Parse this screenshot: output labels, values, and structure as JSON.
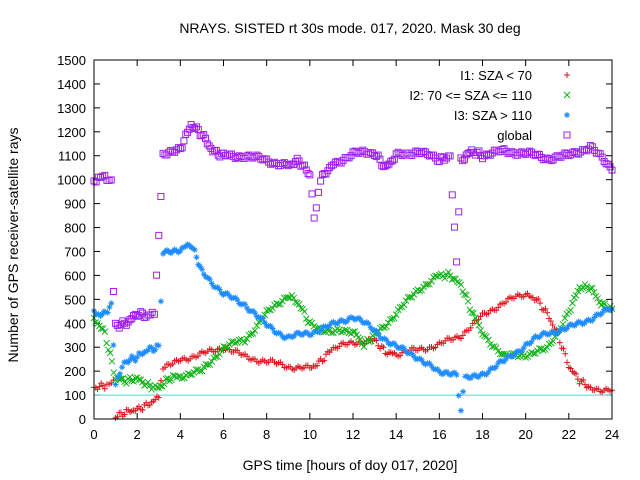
{
  "chart_data": {
    "type": "scatter",
    "title": "NRAYS. SISTED rt 30s mode. 017, 2020. Mask 30 deg",
    "xlabel": "GPS time [hours of doy 017, 2020]",
    "ylabel": "Number of GPS receiver-satellite rays",
    "xlim": [
      0,
      24
    ],
    "ylim": [
      0,
      1500
    ],
    "xticks": [
      "0",
      "2",
      "4",
      "6",
      "8",
      "10",
      "12",
      "14",
      "16",
      "18",
      "20",
      "22",
      "24"
    ],
    "yticks": [
      "0",
      "100",
      "200",
      "300",
      "400",
      "500",
      "600",
      "700",
      "800",
      "900",
      "1000",
      "1100",
      "1200",
      "1300",
      "1400",
      "1500"
    ],
    "legend_position": "top-right",
    "reference_line": {
      "y": 100,
      "color": "#40e0d0"
    },
    "series": [
      {
        "name": "I1: SZA < 70",
        "marker": "+",
        "color": "#e0141c",
        "points": [
          [
            0,
            130
          ],
          [
            0.5,
            140
          ],
          [
            0.9,
            150
          ],
          [
            1.0,
            10
          ],
          [
            1.5,
            30
          ],
          [
            2,
            40
          ],
          [
            2.5,
            60
          ],
          [
            3,
            90
          ],
          [
            3.2,
            220
          ],
          [
            4,
            250
          ],
          [
            5,
            270
          ],
          [
            6,
            300
          ],
          [
            7,
            260
          ],
          [
            8,
            240
          ],
          [
            9,
            220
          ],
          [
            10,
            210
          ],
          [
            10.5,
            240
          ],
          [
            11,
            290
          ],
          [
            12,
            320
          ],
          [
            13,
            330
          ],
          [
            13.5,
            280
          ],
          [
            14,
            270
          ],
          [
            15,
            290
          ],
          [
            16,
            310
          ],
          [
            17,
            350
          ],
          [
            18,
            430
          ],
          [
            19,
            490
          ],
          [
            20,
            520
          ],
          [
            20.5,
            500
          ],
          [
            21,
            440
          ],
          [
            21.5,
            350
          ],
          [
            22,
            220
          ],
          [
            22.5,
            160
          ],
          [
            23,
            130
          ],
          [
            24,
            120
          ]
        ]
      },
      {
        "name": "I2: 70 <= SZA <= 110",
        "marker": "x",
        "color": "#10b418",
        "points": [
          [
            0,
            420
          ],
          [
            0.5,
            360
          ],
          [
            1,
            170
          ],
          [
            1.5,
            160
          ],
          [
            2,
            170
          ],
          [
            2.5,
            140
          ],
          [
            3,
            130
          ],
          [
            3.5,
            170
          ],
          [
            4,
            180
          ],
          [
            5,
            200
          ],
          [
            6,
            300
          ],
          [
            7,
            330
          ],
          [
            8,
            440
          ],
          [
            9,
            520
          ],
          [
            9.5,
            480
          ],
          [
            10,
            400
          ],
          [
            11,
            360
          ],
          [
            12,
            370
          ],
          [
            12.5,
            310
          ],
          [
            13,
            350
          ],
          [
            14,
            440
          ],
          [
            15,
            540
          ],
          [
            16,
            600
          ],
          [
            16.5,
            600
          ],
          [
            17,
            560
          ],
          [
            17.5,
            450
          ],
          [
            18,
            360
          ],
          [
            19,
            260
          ],
          [
            20,
            270
          ],
          [
            21,
            290
          ],
          [
            22,
            450
          ],
          [
            22.5,
            550
          ],
          [
            23,
            550
          ],
          [
            23.5,
            480
          ],
          [
            24,
            460
          ]
        ]
      },
      {
        "name": "I3: SZA > 110",
        "marker": "*",
        "color": "#1e8cff",
        "points": [
          [
            0,
            440
          ],
          [
            0.3,
            430
          ],
          [
            0.8,
            470
          ],
          [
            1,
            150
          ],
          [
            1.2,
            200
          ],
          [
            1.5,
            240
          ],
          [
            2,
            260
          ],
          [
            2.5,
            290
          ],
          [
            3,
            300
          ],
          [
            3.2,
            700
          ],
          [
            4,
            710
          ],
          [
            4.5,
            730
          ],
          [
            5,
            620
          ],
          [
            6,
            520
          ],
          [
            7,
            480
          ],
          [
            8,
            390
          ],
          [
            9,
            340
          ],
          [
            10,
            360
          ],
          [
            11,
            390
          ],
          [
            12,
            430
          ],
          [
            13,
            370
          ],
          [
            14,
            300
          ],
          [
            15,
            260
          ],
          [
            16,
            190
          ],
          [
            16.8,
            180
          ],
          [
            17,
            40
          ],
          [
            17.2,
            180
          ],
          [
            18,
            190
          ],
          [
            19,
            240
          ],
          [
            20,
            310
          ],
          [
            21,
            360
          ],
          [
            22,
            380
          ],
          [
            23,
            420
          ],
          [
            24,
            460
          ]
        ]
      },
      {
        "name": "global",
        "marker": "square",
        "color": "#a020f0",
        "points": [
          [
            0,
            1000
          ],
          [
            0.4,
            1010
          ],
          [
            0.8,
            1000
          ],
          [
            0.9,
            540
          ],
          [
            1.0,
            390
          ],
          [
            1.5,
            400
          ],
          [
            2,
            440
          ],
          [
            2.5,
            430
          ],
          [
            2.8,
            450
          ],
          [
            3.0,
            760
          ],
          [
            3.2,
            1100
          ],
          [
            4,
            1130
          ],
          [
            4.5,
            1230
          ],
          [
            5,
            1190
          ],
          [
            5.5,
            1120
          ],
          [
            6,
            1100
          ],
          [
            7,
            1100
          ],
          [
            8,
            1080
          ],
          [
            9,
            1060
          ],
          [
            9.5,
            1080
          ],
          [
            10,
            1020
          ],
          [
            10.2,
            840
          ],
          [
            10.5,
            1000
          ],
          [
            11,
            1060
          ],
          [
            12,
            1110
          ],
          [
            13,
            1110
          ],
          [
            13.5,
            1050
          ],
          [
            14,
            1100
          ],
          [
            15,
            1120
          ],
          [
            16,
            1080
          ],
          [
            16.5,
            1100
          ],
          [
            16.8,
            650
          ],
          [
            17,
            1080
          ],
          [
            17.5,
            1120
          ],
          [
            18,
            1100
          ],
          [
            19,
            1120
          ],
          [
            20,
            1110
          ],
          [
            21,
            1090
          ],
          [
            22,
            1100
          ],
          [
            23,
            1140
          ],
          [
            24,
            1040
          ]
        ]
      }
    ]
  }
}
